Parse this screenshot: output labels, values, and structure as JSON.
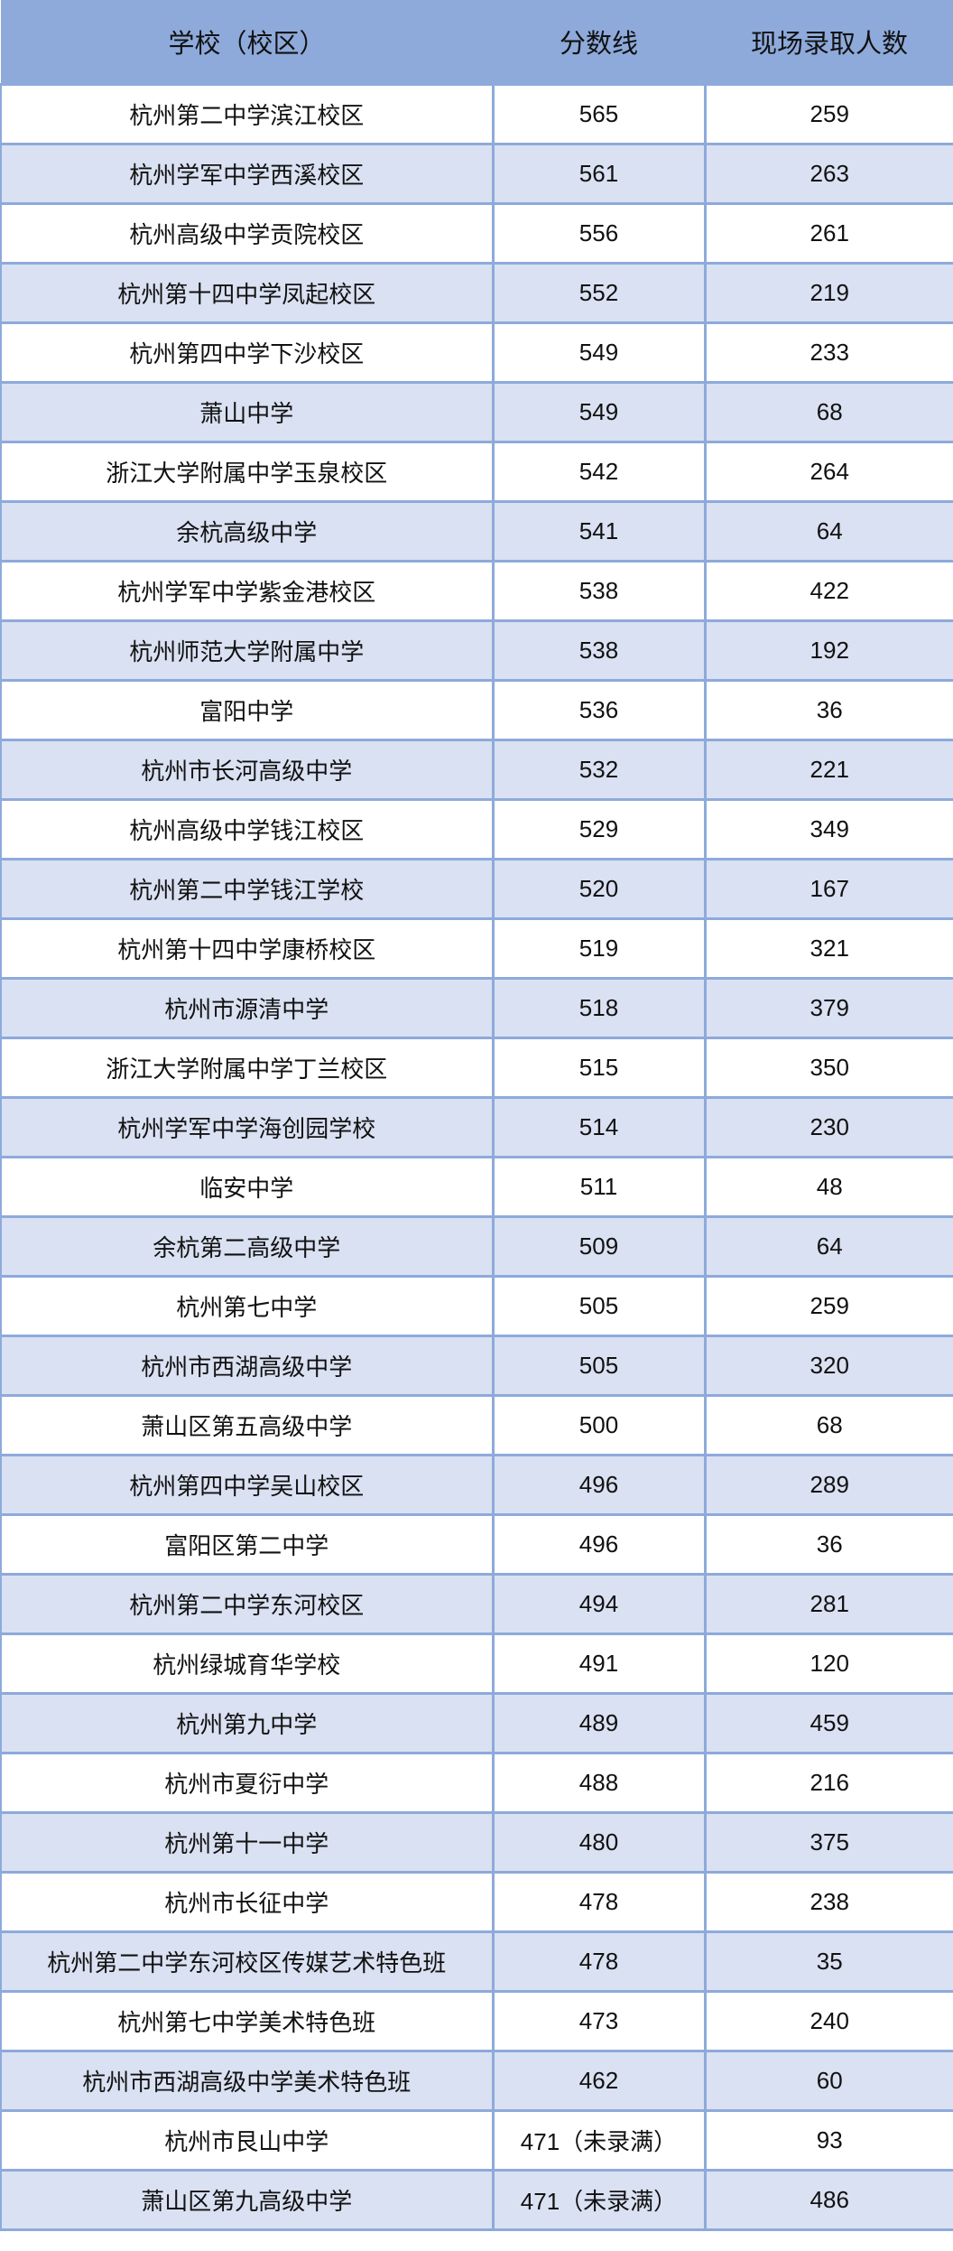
{
  "colors": {
    "header_bg": "#8eaadb",
    "alt_row_bg": "#d9e1f2",
    "border": "#8eaadb"
  },
  "headers": [
    "学校（校区）",
    "分数线",
    "现场录取人数"
  ],
  "rows": [
    [
      "杭州第二中学滨江校区",
      "565",
      "259"
    ],
    [
      "杭州学军中学西溪校区",
      "561",
      "263"
    ],
    [
      "杭州高级中学贡院校区",
      "556",
      "261"
    ],
    [
      "杭州第十四中学凤起校区",
      "552",
      "219"
    ],
    [
      "杭州第四中学下沙校区",
      "549",
      "233"
    ],
    [
      "萧山中学",
      "549",
      "68"
    ],
    [
      "浙江大学附属中学玉泉校区",
      "542",
      "264"
    ],
    [
      "余杭高级中学",
      "541",
      "64"
    ],
    [
      "杭州学军中学紫金港校区",
      "538",
      "422"
    ],
    [
      "杭州师范大学附属中学",
      "538",
      "192"
    ],
    [
      "富阳中学",
      "536",
      "36"
    ],
    [
      "杭州市长河高级中学",
      "532",
      "221"
    ],
    [
      "杭州高级中学钱江校区",
      "529",
      "349"
    ],
    [
      "杭州第二中学钱江学校",
      "520",
      "167"
    ],
    [
      "杭州第十四中学康桥校区",
      "519",
      "321"
    ],
    [
      "杭州市源清中学",
      "518",
      "379"
    ],
    [
      "浙江大学附属中学丁兰校区",
      "515",
      "350"
    ],
    [
      "杭州学军中学海创园学校",
      "514",
      "230"
    ],
    [
      "临安中学",
      "511",
      "48"
    ],
    [
      "余杭第二高级中学",
      "509",
      "64"
    ],
    [
      "杭州第七中学",
      "505",
      "259"
    ],
    [
      "杭州市西湖高级中学",
      "505",
      "320"
    ],
    [
      "萧山区第五高级中学",
      "500",
      "68"
    ],
    [
      "杭州第四中学吴山校区",
      "496",
      "289"
    ],
    [
      "富阳区第二中学",
      "496",
      "36"
    ],
    [
      "杭州第二中学东河校区",
      "494",
      "281"
    ],
    [
      "杭州绿城育华学校",
      "491",
      "120"
    ],
    [
      "杭州第九中学",
      "489",
      "459"
    ],
    [
      "杭州市夏衍中学",
      "488",
      "216"
    ],
    [
      "杭州第十一中学",
      "480",
      "375"
    ],
    [
      "杭州市长征中学",
      "478",
      "238"
    ],
    [
      "杭州第二中学东河校区传媒艺术特色班",
      "478",
      "35"
    ],
    [
      "杭州第七中学美术特色班",
      "473",
      "240"
    ],
    [
      "杭州市西湖高级中学美术特色班",
      "462",
      "60"
    ],
    [
      "杭州市艮山中学",
      "471（未录满）",
      "93"
    ],
    [
      "萧山区第九高级中学",
      "471（未录满）",
      "486"
    ]
  ]
}
